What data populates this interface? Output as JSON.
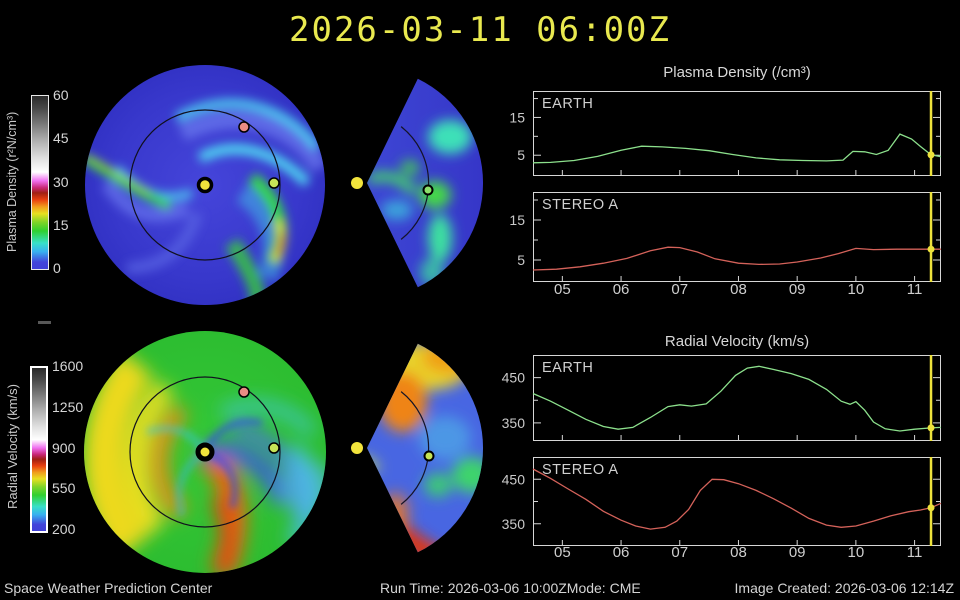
{
  "title": "2026-03-11 06:00Z",
  "footer": {
    "org": "Space Weather Prediction Center",
    "run_time": "Run Time: 2026-03-06 10:00Z",
    "mode": "Mode: CME",
    "image_created": "Image Created: 2026-03-06 12:14Z"
  },
  "colorbars": {
    "density": {
      "label": "Plasma Density (r²N/cm³)",
      "ticks": [
        "60",
        "45",
        "30",
        "15",
        "0"
      ]
    },
    "velocity": {
      "label": "Radial Velocity (km/s)",
      "ticks": [
        "1600",
        "1250",
        "900",
        "550",
        "200"
      ]
    }
  },
  "chart_data": {
    "density": {
      "type": "line",
      "title": "Plasma Density (/cm³)",
      "xlim": [
        4.5,
        11.45
      ],
      "xticks": [
        5,
        6,
        7,
        8,
        9,
        10,
        11
      ],
      "xtick_labels": [
        "05",
        "06",
        "07",
        "08",
        "09",
        "10",
        "11"
      ],
      "yticks_major": [
        5,
        15
      ],
      "yticks_minor": [
        10,
        20
      ],
      "marker_x": 11.28,
      "marker_color": "#ede23c",
      "panels": [
        {
          "label": "EARTH",
          "color": "#8ce08c",
          "ylim": [
            -0.5,
            22
          ],
          "marker_y": 5.1,
          "points": [
            [
              4.5,
              3.0
            ],
            [
              4.8,
              3.1
            ],
            [
              5.2,
              3.6
            ],
            [
              5.6,
              4.7
            ],
            [
              6.0,
              6.3
            ],
            [
              6.35,
              7.4
            ],
            [
              6.7,
              7.2
            ],
            [
              7.1,
              6.8
            ],
            [
              7.5,
              6.2
            ],
            [
              7.9,
              5.2
            ],
            [
              8.3,
              4.3
            ],
            [
              8.7,
              3.8
            ],
            [
              9.1,
              3.6
            ],
            [
              9.5,
              3.5
            ],
            [
              9.78,
              3.7
            ],
            [
              9.95,
              6.0
            ],
            [
              10.15,
              5.9
            ],
            [
              10.35,
              5.2
            ],
            [
              10.55,
              6.3
            ],
            [
              10.75,
              10.6
            ],
            [
              10.95,
              9.3
            ],
            [
              11.1,
              7.3
            ],
            [
              11.28,
              5.1
            ],
            [
              11.45,
              4.6
            ]
          ]
        },
        {
          "label": "STEREO A",
          "color": "#d4625a",
          "ylim": [
            -0.5,
            22
          ],
          "marker_y": 7.7,
          "points": [
            [
              4.5,
              2.5
            ],
            [
              4.9,
              2.7
            ],
            [
              5.3,
              3.3
            ],
            [
              5.7,
              4.2
            ],
            [
              6.1,
              5.4
            ],
            [
              6.5,
              7.3
            ],
            [
              6.8,
              8.2
            ],
            [
              7.0,
              8.1
            ],
            [
              7.3,
              7.0
            ],
            [
              7.6,
              5.3
            ],
            [
              8.0,
              4.2
            ],
            [
              8.35,
              3.9
            ],
            [
              8.7,
              4.0
            ],
            [
              9.0,
              4.5
            ],
            [
              9.4,
              5.5
            ],
            [
              9.7,
              6.6
            ],
            [
              10.0,
              7.9
            ],
            [
              10.3,
              7.6
            ],
            [
              10.7,
              7.7
            ],
            [
              11.0,
              7.7
            ],
            [
              11.28,
              7.7
            ],
            [
              11.45,
              7.7
            ]
          ]
        }
      ]
    },
    "velocity": {
      "type": "line",
      "title": "Radial Velocity (km/s)",
      "xlim": [
        4.5,
        11.45
      ],
      "xticks": [
        5,
        6,
        7,
        8,
        9,
        10,
        11
      ],
      "xtick_labels": [
        "05",
        "06",
        "07",
        "08",
        "09",
        "10",
        "11"
      ],
      "yticks_major": [
        350,
        450
      ],
      "yticks_minor": [
        400
      ],
      "marker_x": 11.28,
      "marker_color": "#ede23c",
      "panels": [
        {
          "label": "EARTH",
          "color": "#8ce08c",
          "ylim": [
            310,
            500
          ],
          "marker_y": 339,
          "points": [
            [
              4.5,
              415
            ],
            [
              4.8,
              398
            ],
            [
              5.1,
              378
            ],
            [
              5.4,
              358
            ],
            [
              5.7,
              342
            ],
            [
              5.95,
              336
            ],
            [
              6.2,
              340
            ],
            [
              6.5,
              362
            ],
            [
              6.8,
              386
            ],
            [
              7.0,
              390
            ],
            [
              7.2,
              387
            ],
            [
              7.45,
              392
            ],
            [
              7.7,
              420
            ],
            [
              7.95,
              455
            ],
            [
              8.15,
              471
            ],
            [
              8.35,
              475
            ],
            [
              8.6,
              468
            ],
            [
              8.9,
              459
            ],
            [
              9.2,
              446
            ],
            [
              9.5,
              424
            ],
            [
              9.75,
              398
            ],
            [
              9.9,
              391
            ],
            [
              10.0,
              397
            ],
            [
              10.15,
              378
            ],
            [
              10.3,
              352
            ],
            [
              10.5,
              337
            ],
            [
              10.75,
              332
            ],
            [
              11.0,
              336
            ],
            [
              11.28,
              339
            ],
            [
              11.45,
              340
            ]
          ]
        },
        {
          "label": "STEREO A",
          "color": "#d4625a",
          "ylim": [
            300,
            500
          ],
          "marker_y": 386,
          "points": [
            [
              4.5,
              473
            ],
            [
              4.8,
              452
            ],
            [
              5.1,
              428
            ],
            [
              5.4,
              405
            ],
            [
              5.7,
              378
            ],
            [
              6.0,
              358
            ],
            [
              6.25,
              345
            ],
            [
              6.5,
              338
            ],
            [
              6.75,
              342
            ],
            [
              6.95,
              356
            ],
            [
              7.15,
              382
            ],
            [
              7.35,
              425
            ],
            [
              7.55,
              450
            ],
            [
              7.75,
              449
            ],
            [
              8.0,
              440
            ],
            [
              8.3,
              425
            ],
            [
              8.6,
              406
            ],
            [
              8.9,
              385
            ],
            [
              9.2,
              362
            ],
            [
              9.5,
              347
            ],
            [
              9.75,
              342
            ],
            [
              10.0,
              345
            ],
            [
              10.3,
              356
            ],
            [
              10.6,
              368
            ],
            [
              10.9,
              377
            ],
            [
              11.1,
              381
            ],
            [
              11.28,
              386
            ],
            [
              11.45,
              396
            ]
          ]
        }
      ]
    }
  }
}
